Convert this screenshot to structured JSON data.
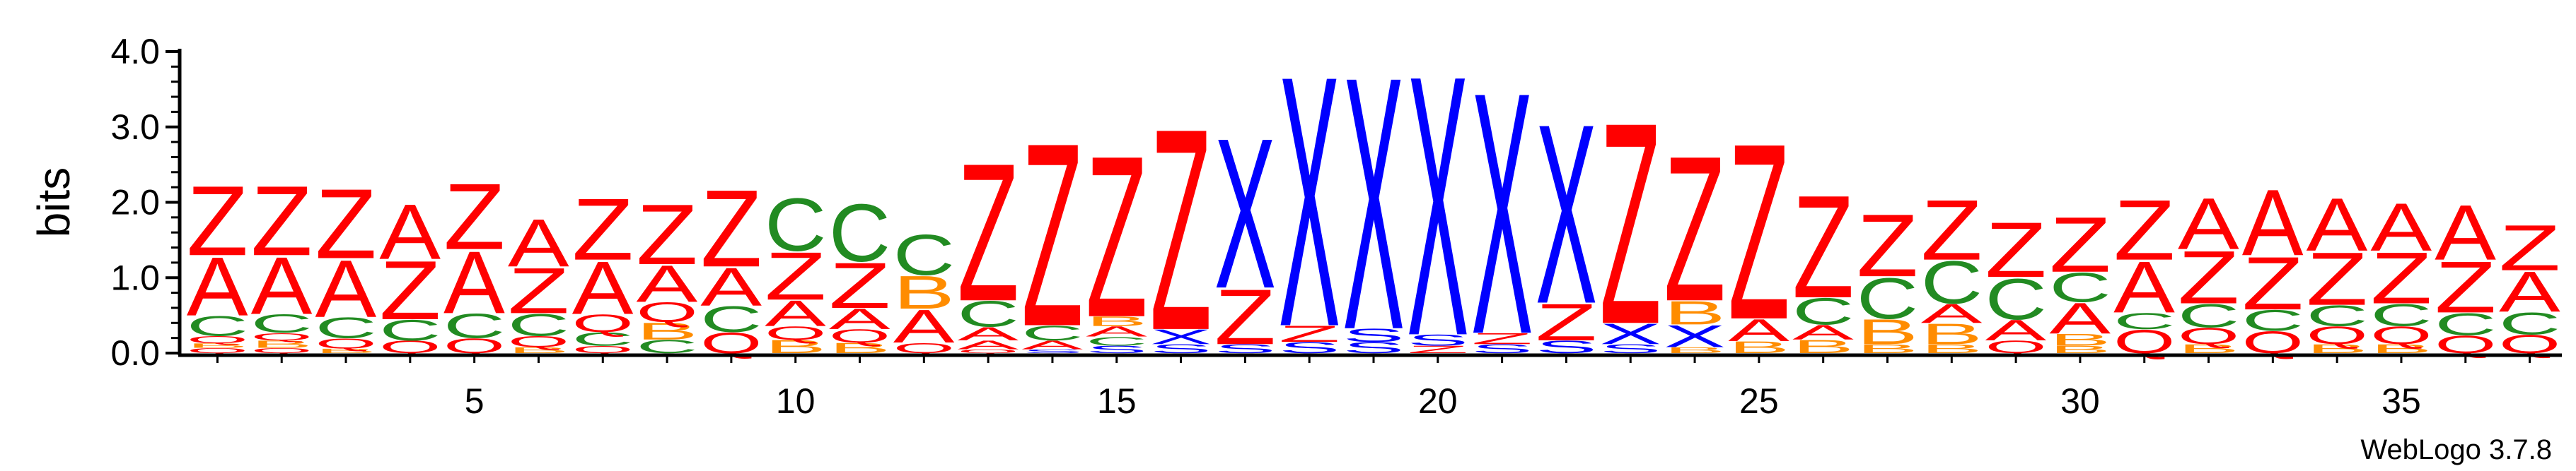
{
  "chart_data": {
    "type": "sequence-logo",
    "ylabel": "bits",
    "ylim": [
      0,
      4.0
    ],
    "yticks": [
      "0.0",
      "1.0",
      "2.0",
      "3.0",
      "4.0"
    ],
    "xticks": [
      5,
      10,
      15,
      20,
      25,
      30,
      35
    ],
    "credit": "WebLogo 3.7.8",
    "colors": {
      "Z": "#ff0000",
      "A": "#ff0000",
      "Q": "#ff0000",
      "C": "#228b22",
      "B": "#ff8c00",
      "X": "#0000ff",
      "S": "#0000ff"
    },
    "positions": [
      {
        "pos": 1,
        "stack": [
          [
            "Q",
            0.07
          ],
          [
            "B",
            0.06
          ],
          [
            "Q",
            0.1
          ],
          [
            "C",
            0.27
          ],
          [
            "A",
            0.8
          ],
          [
            "Z",
            0.95
          ]
        ]
      },
      {
        "pos": 2,
        "stack": [
          [
            "Q",
            0.07
          ],
          [
            "B",
            0.1
          ],
          [
            "Q",
            0.1
          ],
          [
            "C",
            0.25
          ],
          [
            "A",
            0.78
          ],
          [
            "Z",
            0.95
          ]
        ]
      },
      {
        "pos": 3,
        "stack": [
          [
            "B",
            0.06
          ],
          [
            "Q",
            0.14
          ],
          [
            "C",
            0.28
          ],
          [
            "A",
            0.78
          ],
          [
            "Z",
            0.95
          ]
        ]
      },
      {
        "pos": 4,
        "stack": [
          [
            "Q",
            0.17
          ],
          [
            "C",
            0.28
          ],
          [
            "Z",
            0.8
          ],
          [
            "A",
            0.75
          ]
        ]
      },
      {
        "pos": 5,
        "stack": [
          [
            "Q",
            0.2
          ],
          [
            "C",
            0.33
          ],
          [
            "A",
            0.85
          ],
          [
            "Z",
            0.9
          ]
        ]
      },
      {
        "pos": 6,
        "stack": [
          [
            "B",
            0.08
          ],
          [
            "Q",
            0.15
          ],
          [
            "C",
            0.3
          ],
          [
            "Z",
            0.62
          ],
          [
            "A",
            0.65
          ]
        ]
      },
      {
        "pos": 7,
        "stack": [
          [
            "Q",
            0.1
          ],
          [
            "C",
            0.18
          ],
          [
            "Q",
            0.24
          ],
          [
            "A",
            0.72
          ],
          [
            "Z",
            0.84
          ]
        ]
      },
      {
        "pos": 8,
        "stack": [
          [
            "C",
            0.18
          ],
          [
            "B",
            0.23
          ],
          [
            "Q",
            0.27
          ],
          [
            "A",
            0.5
          ],
          [
            "Z",
            0.82
          ]
        ]
      },
      {
        "pos": 9,
        "stack": [
          [
            "Q",
            0.28
          ],
          [
            "C",
            0.35
          ],
          [
            "A",
            0.52
          ],
          [
            "Z",
            1.05
          ]
        ]
      },
      {
        "pos": 10,
        "stack": [
          [
            "B",
            0.18
          ],
          [
            "Q",
            0.18
          ],
          [
            "A",
            0.35
          ],
          [
            "Z",
            0.65
          ],
          [
            "C",
            0.72
          ]
        ]
      },
      {
        "pos": 11,
        "stack": [
          [
            "B",
            0.14
          ],
          [
            "Q",
            0.18
          ],
          [
            "A",
            0.28
          ],
          [
            "Z",
            0.62
          ],
          [
            "C",
            0.78
          ]
        ]
      },
      {
        "pos": 12,
        "stack": [
          [
            "Q",
            0.14
          ],
          [
            "A",
            0.45
          ],
          [
            "B",
            0.45
          ],
          [
            "C",
            0.55
          ]
        ]
      },
      {
        "pos": 13,
        "stack": [
          [
            "Q",
            0.05
          ],
          [
            "A",
            0.12
          ],
          [
            "A",
            0.18
          ],
          [
            "C",
            0.35
          ],
          [
            "Z",
            1.88
          ]
        ]
      },
      {
        "pos": 14,
        "stack": [
          [
            "S",
            0.05
          ],
          [
            "A",
            0.12
          ],
          [
            "C",
            0.2
          ],
          [
            "Z",
            2.5
          ]
        ]
      },
      {
        "pos": 15,
        "stack": [
          [
            "S",
            0.1
          ],
          [
            "C",
            0.12
          ],
          [
            "A",
            0.14
          ],
          [
            "B",
            0.13
          ],
          [
            "Z",
            2.2
          ]
        ]
      },
      {
        "pos": 16,
        "stack": [
          [
            "S",
            0.12
          ],
          [
            "X",
            0.2
          ],
          [
            "Z",
            2.75
          ]
        ]
      },
      {
        "pos": 17,
        "stack": [
          [
            "S",
            0.12
          ],
          [
            "Z",
            0.75
          ],
          [
            "X",
            2.05
          ]
        ]
      },
      {
        "pos": 18,
        "stack": [
          [
            "S",
            0.15
          ],
          [
            "Z",
            0.22
          ],
          [
            "X",
            3.42
          ]
        ]
      },
      {
        "pos": 19,
        "stack": [
          [
            "S",
            0.15
          ],
          [
            "S",
            0.18
          ],
          [
            "X",
            3.45
          ]
        ]
      },
      {
        "pos": 20,
        "stack": [
          [
            "Z",
            0.1
          ],
          [
            "S",
            0.15
          ],
          [
            "X",
            3.55
          ]
        ]
      },
      {
        "pos": 21,
        "stack": [
          [
            "S",
            0.12
          ],
          [
            "Z",
            0.15
          ],
          [
            "X",
            3.3
          ]
        ]
      },
      {
        "pos": 22,
        "stack": [
          [
            "S",
            0.17
          ],
          [
            "Z",
            0.5
          ],
          [
            "X",
            2.45
          ]
        ]
      },
      {
        "pos": 23,
        "stack": [
          [
            "S",
            0.12
          ],
          [
            "X",
            0.28
          ],
          [
            "Z",
            2.75
          ]
        ]
      },
      {
        "pos": 24,
        "stack": [
          [
            "B",
            0.08
          ],
          [
            "X",
            0.3
          ],
          [
            "B",
            0.32
          ],
          [
            "Z",
            1.98
          ]
        ]
      },
      {
        "pos": 25,
        "stack": [
          [
            "B",
            0.16
          ],
          [
            "A",
            0.3
          ],
          [
            "Z",
            2.4
          ]
        ]
      },
      {
        "pos": 26,
        "stack": [
          [
            "B",
            0.18
          ],
          [
            "A",
            0.2
          ],
          [
            "C",
            0.36
          ],
          [
            "Z",
            1.4
          ]
        ]
      },
      {
        "pos": 27,
        "stack": [
          [
            "B",
            0.12
          ],
          [
            "B",
            0.34
          ],
          [
            "C",
            0.56
          ],
          [
            "Z",
            0.85
          ]
        ]
      },
      {
        "pos": 28,
        "stack": [
          [
            "B",
            0.12
          ],
          [
            "B",
            0.28
          ],
          [
            "A",
            0.26
          ],
          [
            "C",
            0.58
          ],
          [
            "Z",
            0.82
          ]
        ]
      },
      {
        "pos": 29,
        "stack": [
          [
            "Q",
            0.17
          ],
          [
            "A",
            0.28
          ],
          [
            "C",
            0.56
          ],
          [
            "Z",
            0.75
          ]
        ]
      },
      {
        "pos": 30,
        "stack": [
          [
            "B",
            0.1
          ],
          [
            "B",
            0.16
          ],
          [
            "A",
            0.42
          ],
          [
            "C",
            0.4
          ],
          [
            "Z",
            0.75
          ]
        ]
      },
      {
        "pos": 31,
        "stack": [
          [
            "Q",
            0.32
          ],
          [
            "C",
            0.22
          ],
          [
            "A",
            0.7
          ],
          [
            "Z",
            0.82
          ]
        ]
      },
      {
        "pos": 32,
        "stack": [
          [
            "B",
            0.12
          ],
          [
            "Q",
            0.22
          ],
          [
            "C",
            0.32
          ],
          [
            "Z",
            0.72
          ],
          [
            "A",
            0.7
          ]
        ]
      },
      {
        "pos": 33,
        "stack": [
          [
            "Q",
            0.3
          ],
          [
            "C",
            0.28
          ],
          [
            "Z",
            0.72
          ],
          [
            "A",
            0.9
          ]
        ]
      },
      {
        "pos": 34,
        "stack": [
          [
            "B",
            0.12
          ],
          [
            "Q",
            0.24
          ],
          [
            "C",
            0.28
          ],
          [
            "Z",
            0.72
          ],
          [
            "A",
            0.72
          ]
        ]
      },
      {
        "pos": 35,
        "stack": [
          [
            "B",
            0.12
          ],
          [
            "Q",
            0.24
          ],
          [
            "C",
            0.3
          ],
          [
            "Z",
            0.7
          ],
          [
            "A",
            0.65
          ]
        ]
      },
      {
        "pos": 36,
        "stack": [
          [
            "Q",
            0.24
          ],
          [
            "C",
            0.3
          ],
          [
            "Z",
            0.7
          ],
          [
            "A",
            0.75
          ]
        ]
      },
      {
        "pos": 37,
        "stack": [
          [
            "Q",
            0.25
          ],
          [
            "C",
            0.3
          ],
          [
            "A",
            0.55
          ],
          [
            "Z",
            0.62
          ]
        ]
      }
    ]
  }
}
